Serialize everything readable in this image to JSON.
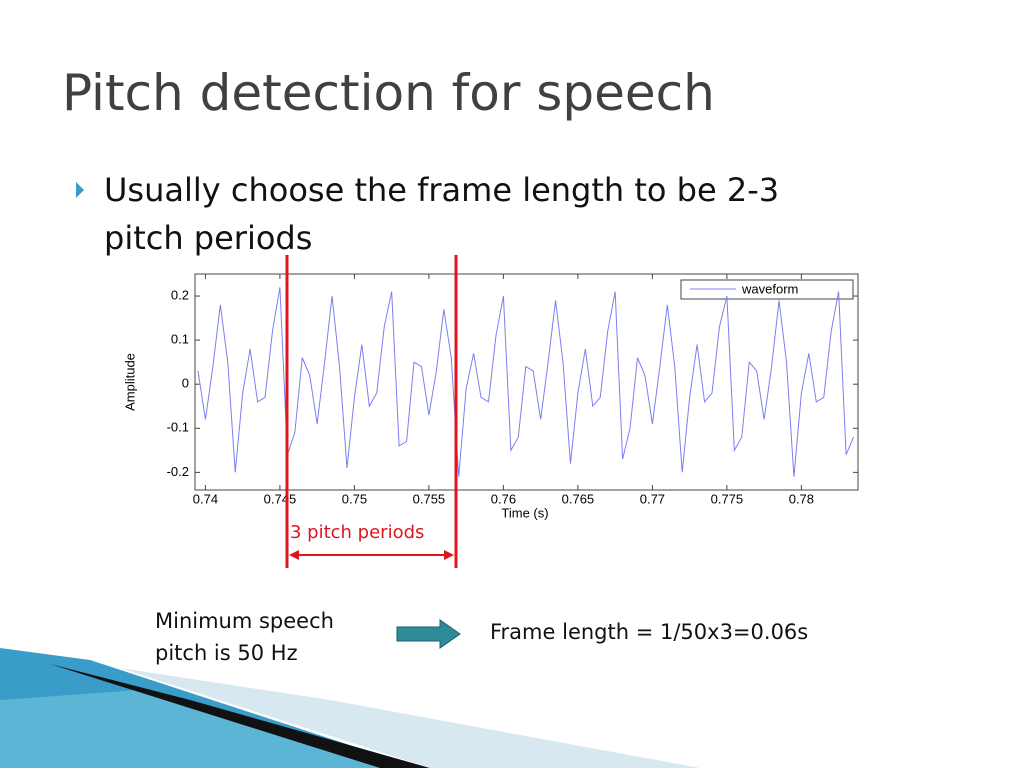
{
  "title": "Pitch detection for speech",
  "bullets": [
    "Usually choose the frame length to be 2-3",
    "pitch periods"
  ],
  "chart_data": {
    "type": "line",
    "x_label": "Time (s)",
    "y_label": "Amplitude",
    "x": [
      0.7395,
      0.74,
      0.7405,
      0.741,
      0.7415,
      0.742,
      0.7425,
      0.743,
      0.7435,
      0.744,
      0.7445,
      0.745,
      0.7455,
      0.746,
      0.7465,
      0.747,
      0.7475,
      0.748,
      0.7485,
      0.749,
      0.7495,
      0.75,
      0.7505,
      0.751,
      0.7515,
      0.752,
      0.7525,
      0.753,
      0.7535,
      0.754,
      0.7545,
      0.755,
      0.7555,
      0.756,
      0.7565,
      0.757,
      0.7575,
      0.758,
      0.7585,
      0.759,
      0.7595,
      0.76,
      0.7605,
      0.761,
      0.7615,
      0.762,
      0.7625,
      0.763,
      0.7635,
      0.764,
      0.7645,
      0.765,
      0.7655,
      0.766,
      0.7665,
      0.767,
      0.7675,
      0.768,
      0.7685,
      0.769,
      0.7695,
      0.77,
      0.7705,
      0.771,
      0.7715,
      0.772,
      0.7725,
      0.773,
      0.7735,
      0.774,
      0.7745,
      0.775,
      0.7755,
      0.776,
      0.7765,
      0.777,
      0.7775,
      0.778,
      0.7785,
      0.779,
      0.7795,
      0.78,
      0.7805,
      0.781,
      0.7815,
      0.782,
      0.7825,
      0.783,
      0.7835
    ],
    "series": [
      {
        "name": "waveform",
        "color": "#7b7ff0",
        "values": [
          0.03,
          -0.08,
          0.04,
          0.18,
          0.05,
          -0.2,
          -0.02,
          0.08,
          -0.04,
          -0.03,
          0.12,
          0.22,
          -0.16,
          -0.11,
          0.06,
          0.02,
          -0.09,
          0.05,
          0.2,
          0.04,
          -0.19,
          -0.03,
          0.09,
          -0.05,
          -0.02,
          0.13,
          0.21,
          -0.14,
          -0.13,
          0.05,
          0.04,
          -0.07,
          0.03,
          0.17,
          0.06,
          -0.21,
          -0.01,
          0.07,
          -0.03,
          -0.04,
          0.11,
          0.2,
          -0.15,
          -0.12,
          0.04,
          0.03,
          -0.08,
          0.05,
          0.19,
          0.05,
          -0.18,
          -0.02,
          0.08,
          -0.05,
          -0.03,
          0.12,
          0.21,
          -0.17,
          -0.1,
          0.06,
          0.02,
          -0.09,
          0.04,
          0.18,
          0.04,
          -0.2,
          -0.03,
          0.09,
          -0.04,
          -0.02,
          0.13,
          0.2,
          -0.15,
          -0.12,
          0.05,
          0.03,
          -0.08,
          0.04,
          0.19,
          0.05,
          -0.21,
          -0.02,
          0.07,
          -0.04,
          -0.03,
          0.12,
          0.21,
          -0.16,
          -0.12
        ]
      }
    ],
    "xlim": [
      0.7393,
      0.7838
    ],
    "ylim": [
      -0.24,
      0.25
    ],
    "xticks": [
      0.74,
      0.745,
      0.75,
      0.755,
      0.76,
      0.765,
      0.77,
      0.775,
      0.78
    ],
    "yticks": [
      0.2,
      0.1,
      0,
      -0.1,
      -0.2
    ],
    "legend": "upper right"
  },
  "annotation": "3 pitch periods",
  "note_left": [
    "Minimum speech",
    "pitch is 50 Hz"
  ],
  "note_right": "Frame length = 1/50x3=0.06s"
}
